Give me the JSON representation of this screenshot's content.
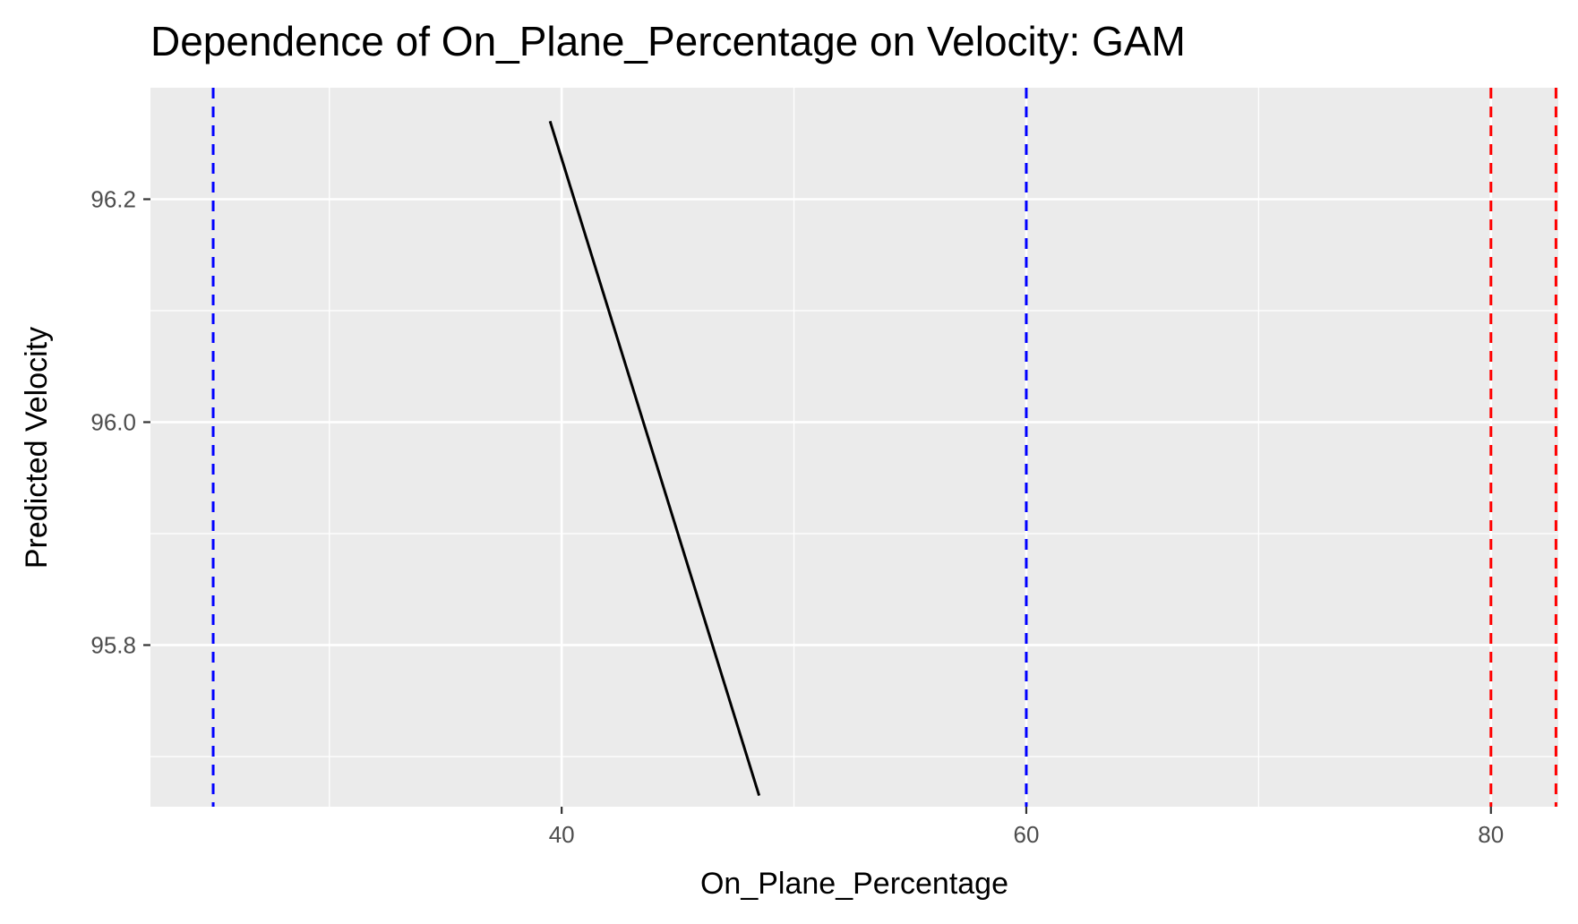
{
  "chart_data": {
    "type": "line",
    "title": "Dependence of On_Plane_Percentage on Velocity: GAM",
    "xlabel": "On_Plane_Percentage",
    "ylabel": "Predicted Velocity",
    "xlim": [
      22.3,
      82.9
    ],
    "ylim": [
      95.655,
      96.3
    ],
    "x_ticks": [
      40,
      60,
      80
    ],
    "x_tick_labels": [
      "40",
      "60",
      "80"
    ],
    "x_minor_ticks": [
      30,
      50,
      70
    ],
    "y_ticks": [
      95.8,
      96.0,
      96.2
    ],
    "y_tick_labels": [
      "95.8",
      "96.0",
      "96.2"
    ],
    "y_minor_ticks": [
      95.7,
      95.9,
      96.1
    ],
    "grid": true,
    "series": [
      {
        "x": [
          39.5,
          48.5
        ],
        "y": [
          96.27,
          95.665
        ],
        "color": "#000000"
      }
    ],
    "vlines": [
      {
        "x": 25.0,
        "color": "#0000ff",
        "style": "dashed"
      },
      {
        "x": 60.0,
        "color": "#0000ff",
        "style": "dashed"
      },
      {
        "x": 80.0,
        "color": "#ff0000",
        "style": "dashed"
      },
      {
        "x": 82.8,
        "color": "#ff0000",
        "style": "dashed"
      }
    ],
    "colors": {
      "panel_background": "#ebebeb",
      "grid": "#ffffff",
      "line": "#000000",
      "tick_text": "#4d4d4d",
      "tick_mark": "#333333"
    }
  }
}
